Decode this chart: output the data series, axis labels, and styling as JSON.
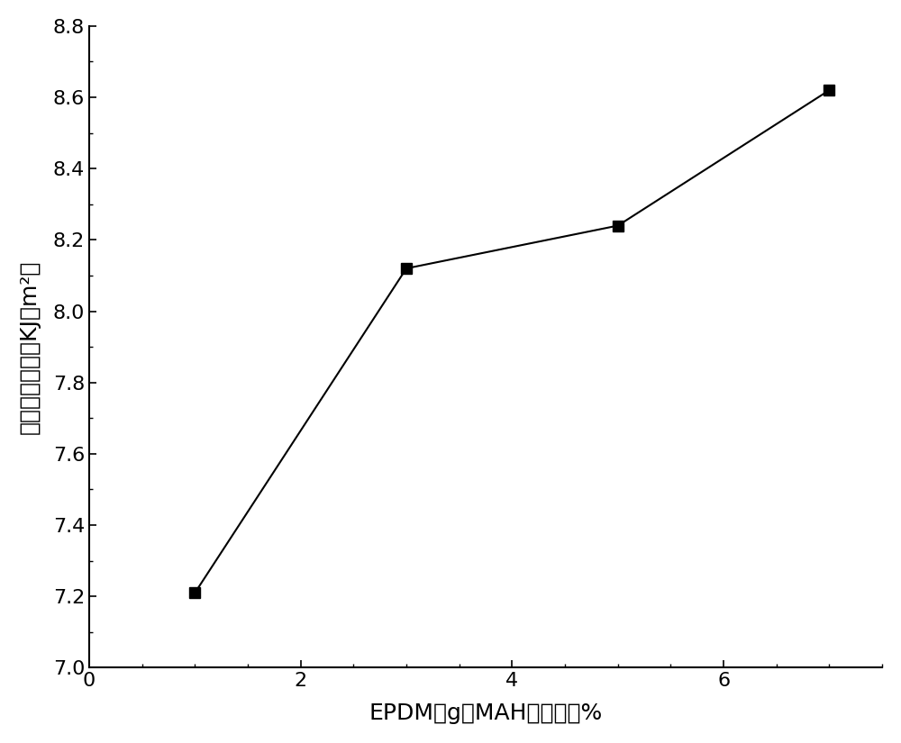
{
  "x": [
    1,
    3,
    5,
    7
  ],
  "y": [
    7.21,
    8.12,
    8.24,
    8.62
  ],
  "xlim": [
    0,
    7.5
  ],
  "ylim": [
    7.0,
    8.8
  ],
  "xticks": [
    0,
    2,
    4,
    6
  ],
  "yticks": [
    7.0,
    7.2,
    7.4,
    7.6,
    7.8,
    8.0,
    8.2,
    8.4,
    8.6,
    8.8
  ],
  "xlabel": "EPDM－g－MAH的含量／%",
  "ylabel": "缺口冲击强度（KJ／m²）",
  "line_color": "#000000",
  "marker": "s",
  "marker_color": "#000000",
  "marker_size": 9,
  "line_width": 1.5,
  "background_color": "#ffffff",
  "xlabel_fontsize": 18,
  "ylabel_fontsize": 18,
  "tick_fontsize": 16,
  "figsize": [
    10.0,
    8.25
  ],
  "dpi": 100
}
